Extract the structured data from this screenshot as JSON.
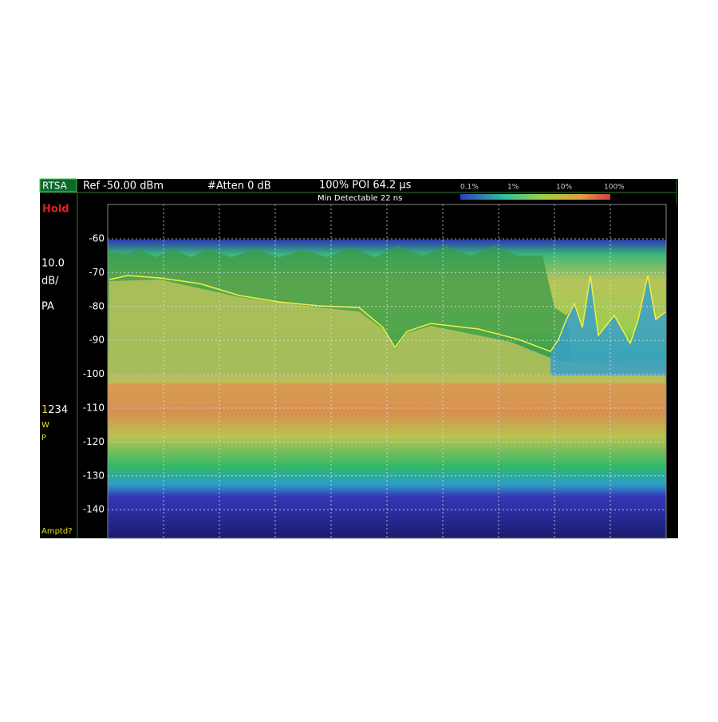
{
  "header": {
    "mode": "RTSA",
    "ref": "Ref -50.00 dBm",
    "atten": "#Atten 0 dB",
    "poi": "100% POI 64.2 µs",
    "min_detectable": "Min Detectable 22 ns"
  },
  "color_scale": [
    "0.1%",
    "1%",
    "10%",
    "100%"
  ],
  "side_panel": {
    "status": "Hold",
    "scale": "10.0",
    "scale_unit": "dB/",
    "detector": "PA",
    "traces": {
      "active": "1",
      "others": "234"
    },
    "trace_mode": "W",
    "trace_type": "P",
    "prompt": "Amptd?"
  },
  "y_axis_labels": [
    "-60",
    "-70",
    "-80",
    "-90",
    "-100",
    "-110",
    "-120",
    "-130",
    "-140"
  ]
}
